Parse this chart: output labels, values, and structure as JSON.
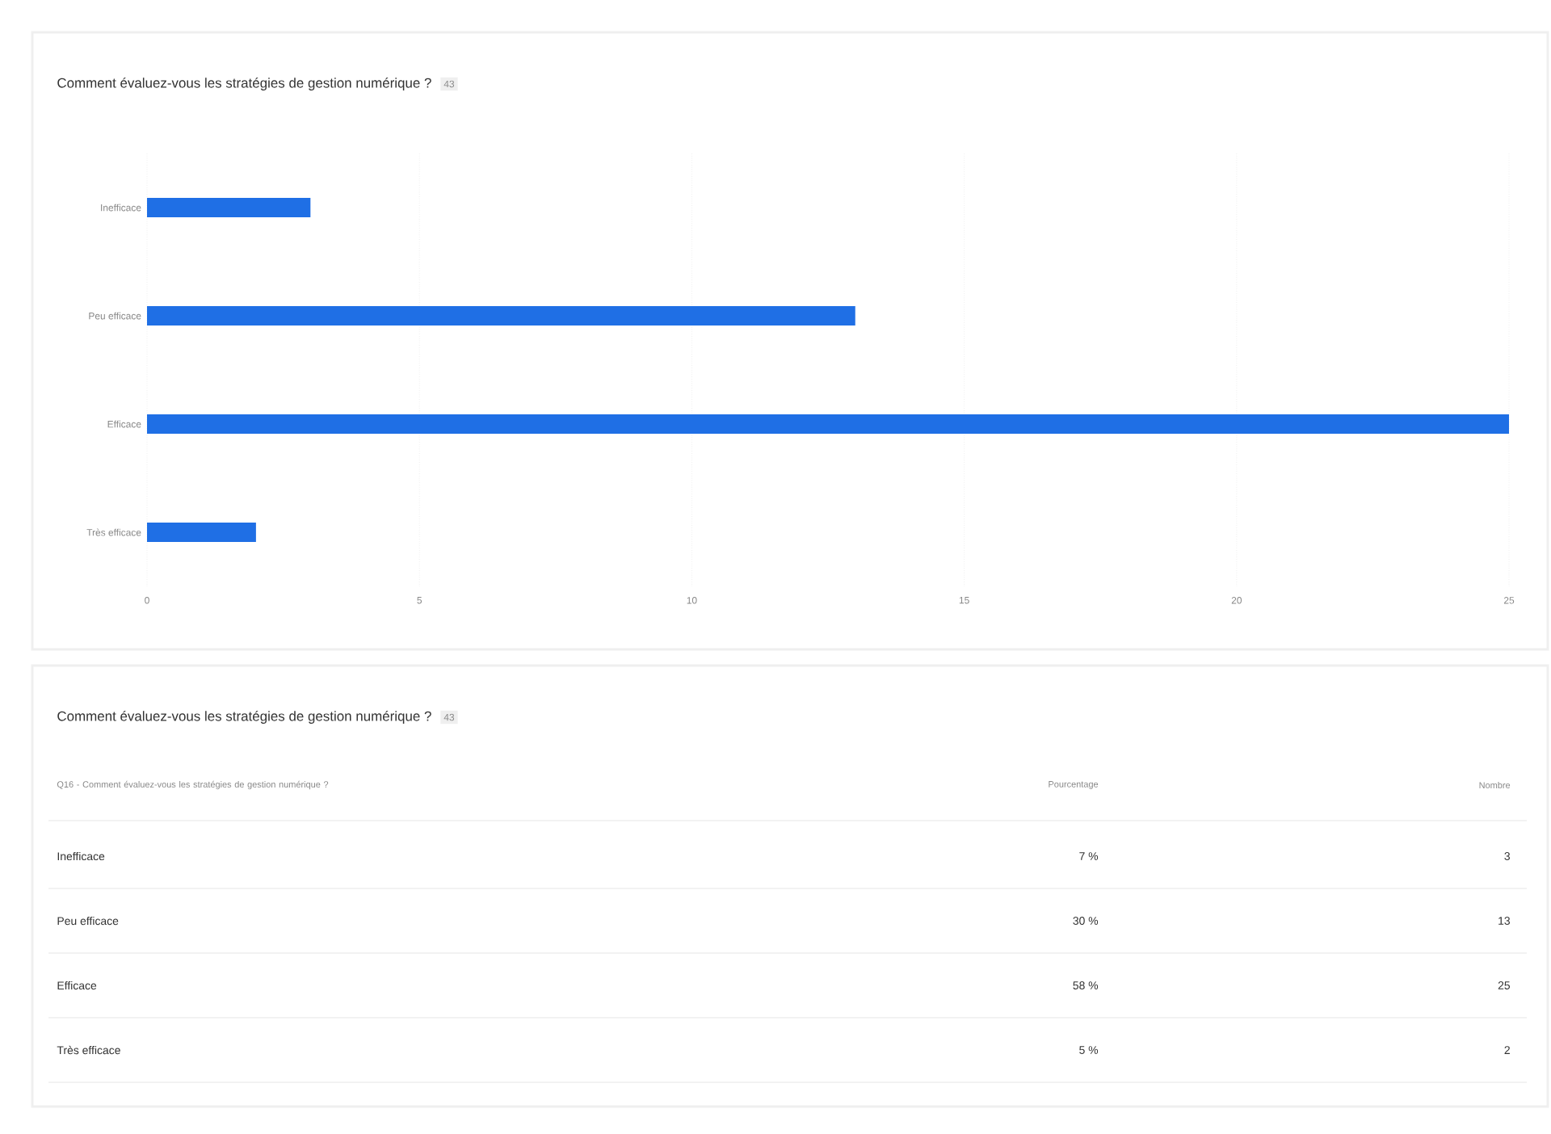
{
  "chart_data": [
    {
      "type": "bar",
      "orientation": "horizontal",
      "title": "Comment évaluez-vous les stratégies de gestion numérique ?",
      "subtitle": "43",
      "categories": [
        "Inefficace",
        "Peu efficace",
        "Efficace",
        "Très efficace"
      ],
      "values": [
        3,
        13,
        25,
        2
      ],
      "color": "#1f6fe5",
      "xlim": [
        0,
        25
      ],
      "xticks": [
        0,
        5,
        10,
        15,
        20,
        25
      ],
      "grid": "x"
    },
    {
      "type": "other",
      "title": "Comment évaluez-vous les stratégies de gestion numérique ?",
      "subtitle": "43",
      "annotations": [
        "Q16 - Comment évaluez-vous les stratégies de gestion numérique ?",
        "Pourcentage",
        "Nombre",
        "Inefficace",
        "7 %",
        "3",
        "Peu efficace",
        "30 %",
        "13",
        "Efficace",
        "58 %",
        "25",
        "Très efficace",
        "5 %",
        "2"
      ]
    }
  ]
}
